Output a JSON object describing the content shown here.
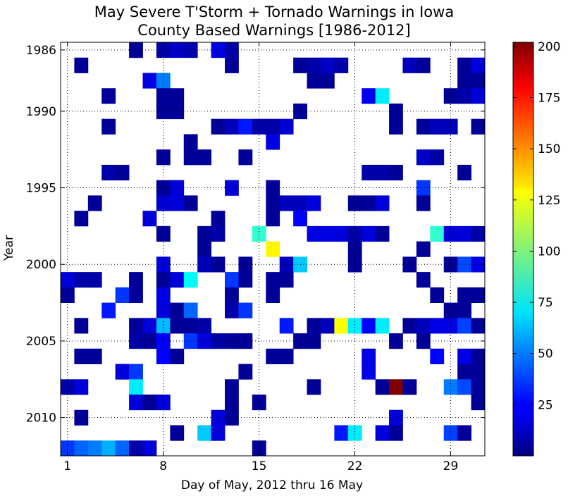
{
  "chart_data": {
    "type": "heatmap",
    "title": "May Severe T'Storm + Tornado Warnings in Iowa",
    "subtitle": "County Based Warnings [1986-2012]",
    "xlabel": "Day of May, 2012 thru 16 May",
    "ylabel": "Year",
    "x_range": [
      1,
      31
    ],
    "y_range": [
      1986,
      2012
    ],
    "x_ticks": [
      1,
      8,
      15,
      22,
      29
    ],
    "y_ticks": [
      1986,
      1990,
      1995,
      2000,
      2005,
      2010
    ],
    "grid": true,
    "colorbar": {
      "min": 0,
      "max": 202,
      "ticks": [
        25,
        50,
        75,
        100,
        125,
        150,
        175,
        200
      ],
      "colormap": "jet"
    },
    "cells": [
      [
        1986,
        6,
        5
      ],
      [
        1986,
        8,
        8
      ],
      [
        1986,
        9,
        14
      ],
      [
        1986,
        10,
        10
      ],
      [
        1986,
        12,
        20
      ],
      [
        1986,
        13,
        8
      ],
      [
        1987,
        2,
        5
      ],
      [
        1987,
        13,
        5
      ],
      [
        1987,
        18,
        5
      ],
      [
        1987,
        19,
        8
      ],
      [
        1987,
        20,
        14
      ],
      [
        1987,
        21,
        8
      ],
      [
        1987,
        26,
        12
      ],
      [
        1987,
        27,
        5
      ],
      [
        1987,
        30,
        5
      ],
      [
        1987,
        31,
        18
      ],
      [
        1988,
        7,
        20
      ],
      [
        1988,
        8,
        50
      ],
      [
        1988,
        19,
        5
      ],
      [
        1988,
        20,
        5
      ],
      [
        1988,
        30,
        5
      ],
      [
        1988,
        31,
        5
      ],
      [
        1989,
        4,
        5
      ],
      [
        1989,
        8,
        5
      ],
      [
        1989,
        9,
        5
      ],
      [
        1989,
        23,
        22
      ],
      [
        1989,
        24,
        72
      ],
      [
        1989,
        29,
        5
      ],
      [
        1989,
        30,
        8
      ],
      [
        1989,
        31,
        18
      ],
      [
        1990,
        8,
        5
      ],
      [
        1990,
        9,
        5
      ],
      [
        1990,
        18,
        5
      ],
      [
        1990,
        25,
        5
      ],
      [
        1991,
        4,
        5
      ],
      [
        1991,
        12,
        5
      ],
      [
        1991,
        13,
        12
      ],
      [
        1991,
        14,
        30
      ],
      [
        1991,
        15,
        8
      ],
      [
        1991,
        16,
        8
      ],
      [
        1991,
        17,
        16
      ],
      [
        1991,
        25,
        5
      ],
      [
        1991,
        27,
        5
      ],
      [
        1991,
        28,
        12
      ],
      [
        1991,
        29,
        12
      ],
      [
        1991,
        31,
        5
      ],
      [
        1992,
        10,
        5
      ],
      [
        1992,
        16,
        20
      ],
      [
        1993,
        8,
        5
      ],
      [
        1993,
        10,
        5
      ],
      [
        1993,
        11,
        5
      ],
      [
        1993,
        14,
        5
      ],
      [
        1993,
        27,
        14
      ],
      [
        1993,
        28,
        8
      ],
      [
        1994,
        4,
        8
      ],
      [
        1994,
        5,
        5
      ],
      [
        1994,
        23,
        8
      ],
      [
        1994,
        24,
        8
      ],
      [
        1994,
        25,
        5
      ],
      [
        1994,
        30,
        5
      ],
      [
        1995,
        8,
        5
      ],
      [
        1995,
        9,
        18
      ],
      [
        1995,
        13,
        18
      ],
      [
        1995,
        16,
        5
      ],
      [
        1995,
        27,
        36
      ],
      [
        1996,
        3,
        5
      ],
      [
        1996,
        8,
        16
      ],
      [
        1996,
        9,
        18
      ],
      [
        1996,
        10,
        5
      ],
      [
        1996,
        16,
        5
      ],
      [
        1996,
        17,
        12
      ],
      [
        1996,
        18,
        12
      ],
      [
        1996,
        19,
        18
      ],
      [
        1996,
        22,
        5
      ],
      [
        1996,
        23,
        5
      ],
      [
        1996,
        24,
        18
      ],
      [
        1996,
        27,
        5
      ],
      [
        1997,
        2,
        5
      ],
      [
        1997,
        7,
        18
      ],
      [
        1997,
        12,
        5
      ],
      [
        1997,
        16,
        5
      ],
      [
        1997,
        18,
        25
      ],
      [
        1998,
        8,
        5
      ],
      [
        1998,
        11,
        5
      ],
      [
        1998,
        12,
        8
      ],
      [
        1998,
        15,
        85
      ],
      [
        1998,
        19,
        20
      ],
      [
        1998,
        20,
        20
      ],
      [
        1998,
        21,
        18
      ],
      [
        1998,
        22,
        8
      ],
      [
        1998,
        23,
        18
      ],
      [
        1998,
        24,
        5
      ],
      [
        1998,
        28,
        85
      ],
      [
        1998,
        29,
        18
      ],
      [
        1998,
        30,
        18
      ],
      [
        1998,
        31,
        8
      ],
      [
        1999,
        11,
        5
      ],
      [
        1999,
        16,
        128
      ],
      [
        1999,
        22,
        5
      ],
      [
        1999,
        27,
        5
      ],
      [
        2000,
        8,
        18
      ],
      [
        2000,
        11,
        12
      ],
      [
        2000,
        12,
        5
      ],
      [
        2000,
        14,
        5
      ],
      [
        2000,
        17,
        12
      ],
      [
        2000,
        18,
        65
      ],
      [
        2000,
        22,
        5
      ],
      [
        2000,
        26,
        5
      ],
      [
        2000,
        29,
        5
      ],
      [
        2000,
        30,
        40
      ],
      [
        2000,
        31,
        20
      ],
      [
        2001,
        1,
        18
      ],
      [
        2001,
        2,
        8
      ],
      [
        2001,
        3,
        8
      ],
      [
        2001,
        6,
        5
      ],
      [
        2001,
        8,
        5
      ],
      [
        2001,
        9,
        18
      ],
      [
        2001,
        10,
        75
      ],
      [
        2001,
        13,
        36
      ],
      [
        2001,
        14,
        5
      ],
      [
        2001,
        16,
        5
      ],
      [
        2001,
        17,
        5
      ],
      [
        2001,
        27,
        5
      ],
      [
        2002,
        1,
        5
      ],
      [
        2002,
        5,
        36
      ],
      [
        2002,
        6,
        5
      ],
      [
        2002,
        8,
        20
      ],
      [
        2002,
        13,
        5
      ],
      [
        2002,
        16,
        5
      ],
      [
        2002,
        28,
        5
      ],
      [
        2002,
        30,
        5
      ],
      [
        2002,
        31,
        5
      ],
      [
        2003,
        4,
        30
      ],
      [
        2003,
        8,
        18
      ],
      [
        2003,
        9,
        5
      ],
      [
        2003,
        10,
        45
      ],
      [
        2003,
        13,
        8
      ],
      [
        2003,
        14,
        36
      ],
      [
        2003,
        29,
        5
      ],
      [
        2003,
        30,
        5
      ],
      [
        2004,
        2,
        5
      ],
      [
        2004,
        6,
        5
      ],
      [
        2004,
        7,
        18
      ],
      [
        2004,
        8,
        62
      ],
      [
        2004,
        9,
        5
      ],
      [
        2004,
        10,
        5
      ],
      [
        2004,
        11,
        8
      ],
      [
        2004,
        17,
        30
      ],
      [
        2004,
        19,
        5
      ],
      [
        2004,
        20,
        12
      ],
      [
        2004,
        21,
        126
      ],
      [
        2004,
        22,
        72
      ],
      [
        2004,
        23,
        25
      ],
      [
        2004,
        24,
        72
      ],
      [
        2004,
        26,
        5
      ],
      [
        2004,
        27,
        12
      ],
      [
        2004,
        28,
        20
      ],
      [
        2004,
        29,
        20
      ],
      [
        2004,
        30,
        38
      ],
      [
        2004,
        31,
        5
      ],
      [
        2005,
        6,
        8
      ],
      [
        2005,
        7,
        5
      ],
      [
        2005,
        8,
        25
      ],
      [
        2005,
        10,
        36
      ],
      [
        2005,
        11,
        18
      ],
      [
        2005,
        12,
        8
      ],
      [
        2005,
        13,
        5
      ],
      [
        2005,
        14,
        5
      ],
      [
        2005,
        18,
        5
      ],
      [
        2005,
        19,
        5
      ],
      [
        2005,
        25,
        5
      ],
      [
        2005,
        27,
        5
      ],
      [
        2006,
        2,
        5
      ],
      [
        2006,
        3,
        5
      ],
      [
        2006,
        8,
        25
      ],
      [
        2006,
        9,
        5
      ],
      [
        2006,
        16,
        5
      ],
      [
        2006,
        17,
        5
      ],
      [
        2006,
        23,
        20
      ],
      [
        2006,
        28,
        25
      ],
      [
        2006,
        30,
        20
      ],
      [
        2006,
        31,
        5
      ],
      [
        2007,
        5,
        18
      ],
      [
        2007,
        6,
        36
      ],
      [
        2007,
        14,
        5
      ],
      [
        2007,
        23,
        20
      ],
      [
        2007,
        30,
        5
      ],
      [
        2007,
        31,
        5
      ],
      [
        2008,
        1,
        8
      ],
      [
        2008,
        2,
        18
      ],
      [
        2008,
        6,
        72
      ],
      [
        2008,
        13,
        5
      ],
      [
        2008,
        19,
        5
      ],
      [
        2008,
        24,
        5
      ],
      [
        2008,
        25,
        202
      ],
      [
        2008,
        26,
        5
      ],
      [
        2008,
        29,
        50
      ],
      [
        2008,
        30,
        40
      ],
      [
        2008,
        31,
        5
      ],
      [
        2009,
        6,
        18
      ],
      [
        2009,
        7,
        5
      ],
      [
        2009,
        8,
        18
      ],
      [
        2009,
        13,
        5
      ],
      [
        2009,
        15,
        5
      ],
      [
        2009,
        31,
        5
      ],
      [
        2010,
        2,
        5
      ],
      [
        2010,
        12,
        18
      ],
      [
        2010,
        13,
        5
      ],
      [
        2010,
        25,
        18
      ],
      [
        2011,
        9,
        5
      ],
      [
        2011,
        11,
        65
      ],
      [
        2011,
        12,
        18
      ],
      [
        2011,
        21,
        30
      ],
      [
        2011,
        22,
        72
      ],
      [
        2011,
        24,
        18
      ],
      [
        2011,
        25,
        5
      ],
      [
        2011,
        29,
        38
      ],
      [
        2011,
        30,
        5
      ],
      [
        2012,
        1,
        36
      ],
      [
        2012,
        2,
        45
      ],
      [
        2012,
        3,
        50
      ],
      [
        2012,
        4,
        60
      ],
      [
        2012,
        5,
        45
      ],
      [
        2012,
        6,
        8
      ],
      [
        2012,
        7,
        18
      ],
      [
        2012,
        15,
        5
      ]
    ]
  }
}
